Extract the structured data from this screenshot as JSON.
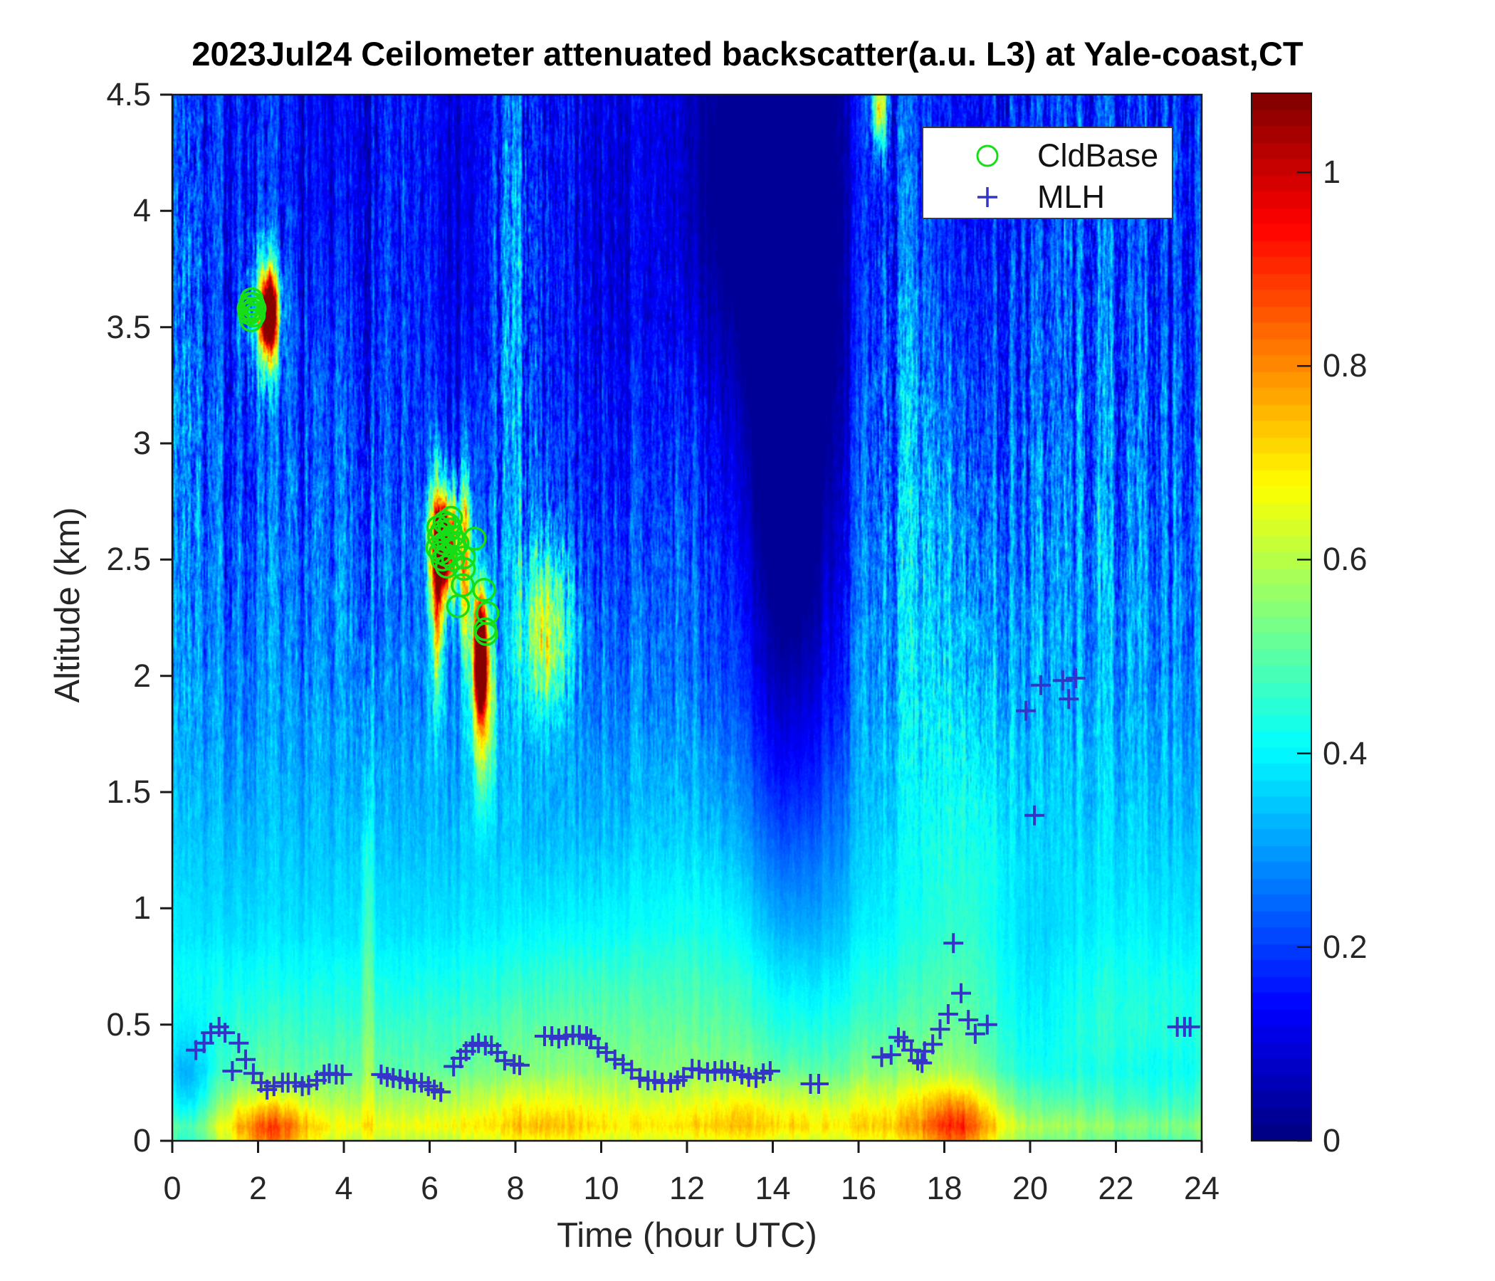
{
  "figure": {
    "title": "2023Jul24 Ceilometer attenuated backscatter(a.u. L3) at Yale-coast,CT"
  },
  "chart_data": {
    "type": "heatmap",
    "title": "2023Jul24 Ceilometer attenuated backscatter(a.u. L3) at Yale-coast,CT",
    "xlabel": "Time (hour UTC)",
    "ylabel": "Altitude (km)",
    "xlim": [
      0,
      24
    ],
    "ylim": [
      0,
      4.5
    ],
    "clim": [
      0,
      1.0816
    ],
    "grid": false,
    "x_ticks": {
      "values": [
        0,
        2,
        4,
        6,
        8,
        10,
        12,
        14,
        16,
        18,
        20,
        22,
        24
      ],
      "labels": [
        "0",
        "2",
        "4",
        "6",
        "8",
        "10",
        "12",
        "14",
        "16",
        "18",
        "20",
        "22",
        "24"
      ]
    },
    "y_ticks": {
      "values": [
        0,
        0.5,
        1,
        1.5,
        2,
        2.5,
        3,
        3.5,
        4,
        4.5
      ],
      "labels": [
        "0",
        "0.5",
        "1",
        "1.5",
        "2",
        "2.5",
        "3",
        "3.5",
        "4",
        "4.5"
      ]
    },
    "colorbar": {
      "colormap": "jet",
      "bands": 64,
      "tick_values": [
        0,
        0.2,
        0.4,
        0.6,
        0.8,
        1
      ],
      "tick_labels": [
        "0",
        "0.2",
        "0.4",
        "0.6",
        "0.8",
        "1"
      ]
    },
    "legend": {
      "position": "northeast",
      "entries": [
        {
          "label": "CldBase",
          "marker": "circle",
          "color": "#16dd16"
        },
        {
          "label": "MLH",
          "marker": "plus",
          "color": "#3434c8"
        }
      ]
    },
    "series": {
      "CldBase": {
        "marker": "circle",
        "color": "#16dd16",
        "units": [
          "hour UTC",
          "km"
        ],
        "points": [
          [
            1.78,
            3.58
          ],
          [
            1.82,
            3.6
          ],
          [
            1.86,
            3.57
          ],
          [
            1.9,
            3.55
          ],
          [
            1.84,
            3.53
          ],
          [
            1.8,
            3.56
          ],
          [
            1.88,
            3.6
          ],
          [
            1.85,
            3.62
          ],
          [
            1.92,
            3.58
          ],
          [
            6.18,
            2.55
          ],
          [
            6.22,
            2.6
          ],
          [
            6.28,
            2.62
          ],
          [
            6.33,
            2.57
          ],
          [
            6.38,
            2.52
          ],
          [
            6.43,
            2.58
          ],
          [
            6.48,
            2.63
          ],
          [
            6.53,
            2.6
          ],
          [
            6.58,
            2.55
          ],
          [
            6.3,
            2.5
          ],
          [
            6.45,
            2.65
          ],
          [
            6.25,
            2.53
          ],
          [
            6.55,
            2.5
          ],
          [
            6.35,
            2.66
          ],
          [
            6.2,
            2.64
          ],
          [
            6.65,
            2.57
          ],
          [
            6.4,
            2.47
          ],
          [
            6.5,
            2.68
          ],
          [
            7.05,
            2.59
          ],
          [
            6.8,
            2.51
          ],
          [
            6.8,
            2.46
          ],
          [
            6.77,
            2.39
          ],
          [
            6.66,
            2.3
          ],
          [
            7.27,
            2.37
          ],
          [
            7.35,
            2.27
          ],
          [
            7.3,
            2.2
          ],
          [
            7.32,
            2.18
          ]
        ]
      },
      "MLH": {
        "marker": "plus",
        "color": "#3434c8",
        "units": [
          "hour UTC",
          "km"
        ],
        "points": [
          [
            0.55,
            0.39
          ],
          [
            0.74,
            0.42
          ],
          [
            0.9,
            0.465
          ],
          [
            1.09,
            0.49
          ],
          [
            1.23,
            0.465
          ],
          [
            1.4,
            0.3
          ],
          [
            1.55,
            0.42
          ],
          [
            1.71,
            0.35
          ],
          [
            1.89,
            0.29
          ],
          [
            2.07,
            0.25
          ],
          [
            2.21,
            0.22
          ],
          [
            2.37,
            0.235
          ],
          [
            2.57,
            0.25
          ],
          [
            2.7,
            0.25
          ],
          [
            2.87,
            0.25
          ],
          [
            3.03,
            0.235
          ],
          [
            3.18,
            0.24
          ],
          [
            3.37,
            0.26
          ],
          [
            3.54,
            0.285
          ],
          [
            3.66,
            0.29
          ],
          [
            3.82,
            0.285
          ],
          [
            3.96,
            0.285
          ],
          [
            4.87,
            0.285
          ],
          [
            5.01,
            0.275
          ],
          [
            5.15,
            0.27
          ],
          [
            5.31,
            0.265
          ],
          [
            5.48,
            0.26
          ],
          [
            5.64,
            0.25
          ],
          [
            5.81,
            0.25
          ],
          [
            5.97,
            0.235
          ],
          [
            6.11,
            0.22
          ],
          [
            6.26,
            0.21
          ],
          [
            6.56,
            0.32
          ],
          [
            6.72,
            0.355
          ],
          [
            6.85,
            0.385
          ],
          [
            7.0,
            0.41
          ],
          [
            7.14,
            0.42
          ],
          [
            7.3,
            0.41
          ],
          [
            7.44,
            0.41
          ],
          [
            7.58,
            0.38
          ],
          [
            7.75,
            0.345
          ],
          [
            7.97,
            0.33
          ],
          [
            8.1,
            0.325
          ],
          [
            8.68,
            0.45
          ],
          [
            8.85,
            0.45
          ],
          [
            9.01,
            0.44
          ],
          [
            9.18,
            0.45
          ],
          [
            9.34,
            0.455
          ],
          [
            9.49,
            0.455
          ],
          [
            9.66,
            0.45
          ],
          [
            9.76,
            0.44
          ],
          [
            9.93,
            0.4
          ],
          [
            10.12,
            0.38
          ],
          [
            10.32,
            0.35
          ],
          [
            10.51,
            0.33
          ],
          [
            10.71,
            0.305
          ],
          [
            10.9,
            0.27
          ],
          [
            11.09,
            0.26
          ],
          [
            11.25,
            0.26
          ],
          [
            11.42,
            0.25
          ],
          [
            11.62,
            0.25
          ],
          [
            11.78,
            0.26
          ],
          [
            11.92,
            0.275
          ],
          [
            12.12,
            0.31
          ],
          [
            12.28,
            0.305
          ],
          [
            12.48,
            0.295
          ],
          [
            12.65,
            0.3
          ],
          [
            12.81,
            0.305
          ],
          [
            12.95,
            0.295
          ],
          [
            13.11,
            0.3
          ],
          [
            13.28,
            0.285
          ],
          [
            13.44,
            0.275
          ],
          [
            13.61,
            0.27
          ],
          [
            13.78,
            0.29
          ],
          [
            13.94,
            0.3
          ],
          [
            14.88,
            0.245
          ],
          [
            15.07,
            0.245
          ],
          [
            16.54,
            0.36
          ],
          [
            16.76,
            0.37
          ],
          [
            16.93,
            0.445
          ],
          [
            17.06,
            0.43
          ],
          [
            17.23,
            0.39
          ],
          [
            17.38,
            0.345
          ],
          [
            17.48,
            0.335
          ],
          [
            17.54,
            0.385
          ],
          [
            17.73,
            0.415
          ],
          [
            17.9,
            0.48
          ],
          [
            18.09,
            0.545
          ],
          [
            18.21,
            0.85
          ],
          [
            18.39,
            0.635
          ],
          [
            18.56,
            0.52
          ],
          [
            18.72,
            0.46
          ],
          [
            19.0,
            0.5
          ],
          [
            19.9,
            1.85
          ],
          [
            20.1,
            1.4
          ],
          [
            20.25,
            1.96
          ],
          [
            20.76,
            1.98
          ],
          [
            20.9,
            1.9
          ],
          [
            21.06,
            1.99
          ],
          [
            23.43,
            0.49
          ],
          [
            23.6,
            0.49
          ],
          [
            23.73,
            0.49
          ]
        ]
      }
    },
    "heatmap": {
      "description": "attenuated backscatter field (a.u.), jet colormap",
      "seed": 7,
      "base_profile_alt_value": [
        [
          0,
          0.6
        ],
        [
          0.06,
          0.655
        ],
        [
          0.16,
          0.585
        ],
        [
          0.3,
          0.5
        ],
        [
          0.55,
          0.445
        ],
        [
          0.9,
          0.375
        ],
        [
          1.4,
          0.325
        ],
        [
          2.0,
          0.27
        ],
        [
          2.8,
          0.215
        ],
        [
          3.6,
          0.175
        ],
        [
          4.5,
          0.155
        ]
      ],
      "blobs_t_alt_st_sa_amp": [
        [
          2.25,
          3.56,
          0.13,
          0.12,
          1.05
        ],
        [
          2.1,
          3.55,
          0.28,
          0.2,
          0.3
        ],
        [
          6.35,
          2.56,
          0.22,
          0.16,
          0.95
        ],
        [
          6.18,
          2.38,
          0.1,
          0.32,
          0.5
        ],
        [
          6.85,
          2.48,
          0.1,
          0.28,
          0.45
        ],
        [
          7.18,
          2.1,
          0.11,
          0.17,
          1.05
        ],
        [
          7.25,
          1.88,
          0.18,
          0.28,
          0.4
        ],
        [
          8.7,
          2.2,
          0.4,
          0.26,
          0.4
        ],
        [
          16.5,
          4.45,
          0.12,
          0.12,
          0.55
        ],
        [
          4.55,
          0.9,
          0.1,
          1.1,
          0.13
        ],
        [
          0.35,
          3.4,
          0.3,
          1.2,
          0.1
        ],
        [
          7.9,
          3.7,
          0.35,
          0.9,
          0.09
        ],
        [
          16.9,
          3.2,
          0.8,
          1.6,
          0.09
        ],
        [
          18.6,
          1.3,
          0.8,
          0.9,
          0.09
        ],
        [
          21.5,
          3.0,
          1.5,
          1.8,
          0.05
        ],
        [
          12.9,
          0.8,
          1.5,
          0.5,
          0.06
        ],
        [
          9.3,
          0.5,
          1.5,
          0.4,
          0.05
        ],
        [
          14.6,
          3.4,
          1.05,
          1.5,
          -0.16
        ],
        [
          14.3,
          2.2,
          0.85,
          1.0,
          -0.12
        ],
        [
          13.9,
          4.1,
          1.3,
          0.8,
          -0.09
        ],
        [
          6.7,
          3.9,
          0.6,
          0.9,
          -0.075
        ],
        [
          10.4,
          3.7,
          0.8,
          1.0,
          -0.065
        ],
        [
          12.4,
          4.15,
          0.6,
          0.6,
          -0.065
        ],
        [
          17.9,
          4.15,
          0.7,
          0.6,
          -0.05
        ],
        [
          0.3,
          0.18,
          0.5,
          0.22,
          -0.2
        ],
        [
          22.9,
          0.12,
          1.8,
          0.22,
          -0.13
        ],
        [
          20.0,
          0.45,
          0.8,
          0.45,
          -0.07
        ],
        [
          3.6,
          4.3,
          0.7,
          0.5,
          -0.05
        ],
        [
          2.3,
          0.02,
          0.65,
          0.11,
          0.22
        ],
        [
          8.6,
          0.07,
          1.0,
          0.14,
          0.07
        ],
        [
          13.7,
          0.1,
          1.3,
          0.15,
          0.08
        ],
        [
          18.35,
          0.05,
          0.6,
          0.13,
          0.2
        ],
        [
          16.9,
          0.1,
          1.0,
          0.18,
          0.06
        ]
      ],
      "noise": {
        "column_amp": 0.55,
        "cell_amp": 0.45,
        "alt_low": 0.9,
        "alt_high": 2.1,
        "mul_base": 0.1,
        "mul_high": 0.4,
        "add_high": 0.13
      }
    }
  }
}
